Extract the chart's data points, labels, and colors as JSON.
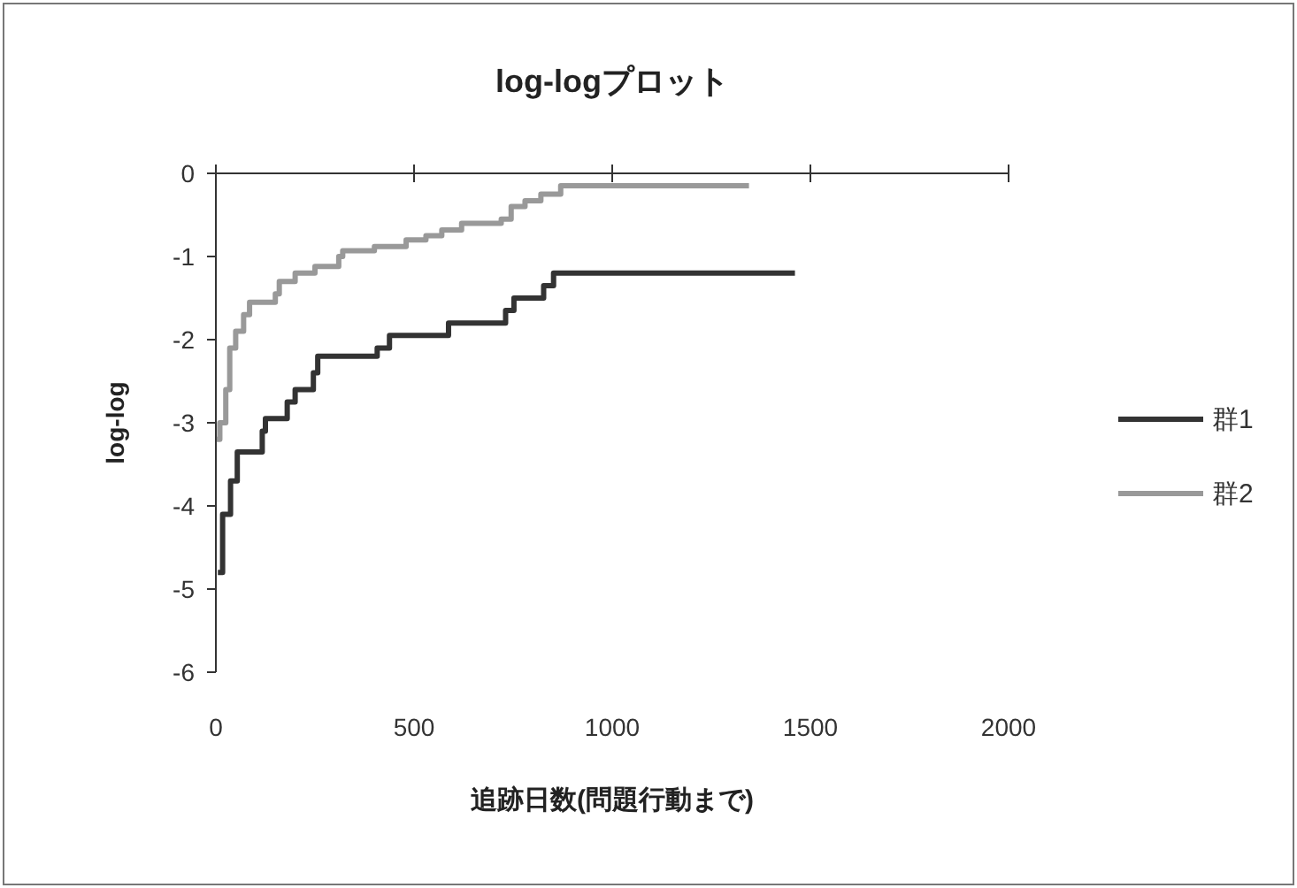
{
  "chart_data": {
    "type": "step",
    "title": "log-logプロット",
    "xlabel": "追跡日数(問題行動まで)",
    "ylabel": "log-log",
    "xlim": [
      0,
      2000
    ],
    "xticks": [
      0,
      500,
      1000,
      1500,
      2000
    ],
    "ylim": [
      -6,
      0
    ],
    "yticks": [
      0,
      -1,
      -2,
      -3,
      -4,
      -5,
      -6
    ],
    "grid": false,
    "legend": "right",
    "series": [
      {
        "name": "群1",
        "color": "#333333",
        "x": [
          5,
          17,
          37,
          54,
          117,
          125,
          180,
          200,
          246,
          257,
          407,
          438,
          587,
          731,
          752,
          827,
          852,
          1461
        ],
        "values": [
          -4.8,
          -4.1,
          -3.7,
          -3.35,
          -3.1,
          -2.95,
          -2.75,
          -2.6,
          -2.4,
          -2.2,
          -2.1,
          -1.95,
          -1.8,
          -1.65,
          -1.5,
          -1.35,
          -1.2,
          -1.2
        ]
      },
      {
        "name": "群2",
        "color": "#999999",
        "x": [
          2,
          10,
          25,
          35,
          50,
          70,
          85,
          150,
          160,
          200,
          250,
          310,
          320,
          400,
          480,
          530,
          570,
          620,
          720,
          745,
          780,
          820,
          870,
          1345
        ],
        "values": [
          -3.2,
          -3.0,
          -2.6,
          -2.1,
          -1.9,
          -1.7,
          -1.55,
          -1.45,
          -1.3,
          -1.2,
          -1.12,
          -1.0,
          -0.93,
          -0.88,
          -0.8,
          -0.75,
          -0.68,
          -0.6,
          -0.55,
          -0.4,
          -0.33,
          -0.25,
          -0.15,
          -0.15
        ]
      }
    ]
  }
}
